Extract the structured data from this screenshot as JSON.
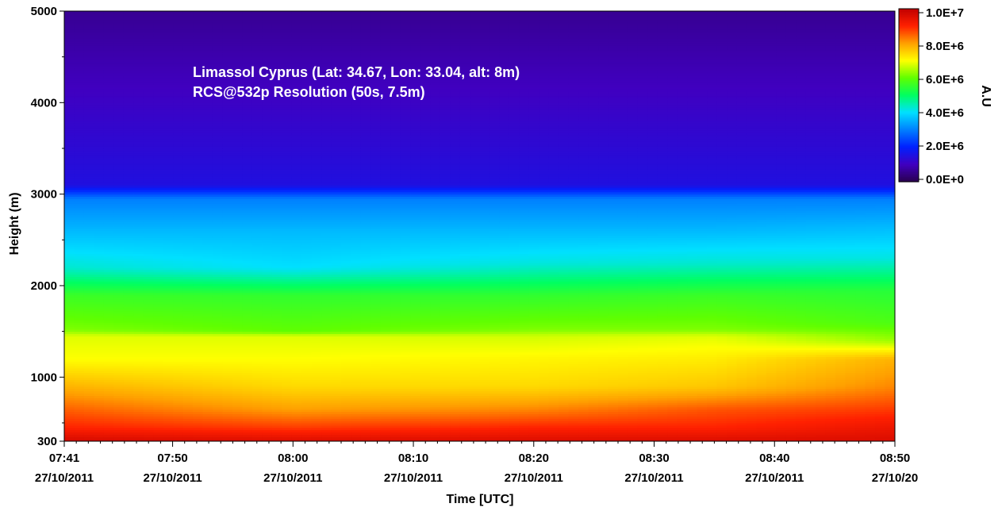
{
  "chart_data": {
    "type": "heatmap",
    "annotation_lines": [
      "Limassol Cyprus (Lat: 34.67, Lon: 33.04, alt: 8m)",
      "RCS@532p Resolution (50s, 7.5m)"
    ],
    "xlabel": "Time [UTC]",
    "ylabel": "Height (m)",
    "x_ticks": [
      {
        "time": "07:41",
        "date": "27/10/2011",
        "minutes": 461
      },
      {
        "time": "07:50",
        "date": "27/10/2011",
        "minutes": 470
      },
      {
        "time": "08:00",
        "date": "27/10/2011",
        "minutes": 480
      },
      {
        "time": "08:10",
        "date": "27/10/2011",
        "minutes": 490
      },
      {
        "time": "08:20",
        "date": "27/10/2011",
        "minutes": 500
      },
      {
        "time": "08:30",
        "date": "27/10/2011",
        "minutes": 510
      },
      {
        "time": "08:40",
        "date": "27/10/2011",
        "minutes": 520
      },
      {
        "time": "08:50",
        "date": "27/10/20",
        "minutes": 530
      }
    ],
    "xlim_minutes": [
      461,
      530
    ],
    "y_ticks": [
      300,
      1000,
      2000,
      3000,
      4000,
      5000
    ],
    "ylim": [
      300,
      5000
    ],
    "colorbar": {
      "label": "A.U",
      "ticks": [
        "1.0E+7",
        "8.0E+6",
        "6.0E+6",
        "4.0E+6",
        "2.0E+6",
        "0.0E+0"
      ],
      "tick_values": [
        10000000,
        8000000,
        6000000,
        4000000,
        2000000,
        0
      ],
      "range": [
        0,
        10000000
      ],
      "colors": [
        "#2a0050",
        "#4000c0",
        "#0020ff",
        "#0080ff",
        "#00e0ff",
        "#00ff60",
        "#60ff00",
        "#ffff00",
        "#ffa000",
        "#ff2000",
        "#c00000"
      ]
    },
    "profiles": [
      {
        "minutes": 461,
        "heights": [
          300,
          450,
          650,
          900,
          1200,
          1450,
          1520,
          1900,
          2200,
          2600,
          2950,
          3100,
          5000
        ],
        "values": [
          9700000.0,
          9000000.0,
          8500000.0,
          7800000.0,
          7000000.0,
          6800000.0,
          6200000.0,
          5600000.0,
          4300000.0,
          3600000.0,
          3000000.0,
          1500000.0,
          600000.0
        ]
      },
      {
        "minutes": 480,
        "heights": [
          300,
          450,
          650,
          900,
          1200,
          1450,
          1500,
          1900,
          2200,
          2600,
          2950,
          3100,
          5000
        ],
        "values": [
          9600000.0,
          8800000.0,
          8000000.0,
          7400000.0,
          7000000.0,
          6800000.0,
          6000000.0,
          5500000.0,
          4000000.0,
          3600000.0,
          3000000.0,
          1500000.0,
          600000.0
        ]
      },
      {
        "minutes": 500,
        "heights": [
          300,
          450,
          650,
          900,
          1200,
          1450,
          1520,
          1900,
          2250,
          2600,
          2950,
          3100,
          5000
        ],
        "values": [
          9600000.0,
          9000000.0,
          8200000.0,
          7400000.0,
          7100000.0,
          6700000.0,
          6200000.0,
          5500000.0,
          4200000.0,
          3600000.0,
          3000000.0,
          1500000.0,
          600000.0
        ]
      },
      {
        "minutes": 515,
        "heights": [
          300,
          450,
          650,
          900,
          1200,
          1450,
          1520,
          1900,
          2250,
          2600,
          2950,
          3100,
          5000
        ],
        "values": [
          9600000.0,
          9000000.0,
          8600000.0,
          7600000.0,
          7200000.0,
          6800000.0,
          6200000.0,
          5600000.0,
          4300000.0,
          3600000.0,
          3000000.0,
          1500000.0,
          600000.0
        ]
      },
      {
        "minutes": 530,
        "heights": [
          300,
          450,
          650,
          900,
          1200,
          1400,
          1600,
          1950,
          2300,
          2650,
          2950,
          3100,
          5000
        ],
        "values": [
          9600000.0,
          9300000.0,
          8800000.0,
          8200000.0,
          7800000.0,
          6400000.0,
          5800000.0,
          5400000.0,
          4200000.0,
          3600000.0,
          3000000.0,
          1500000.0,
          600000.0
        ]
      }
    ]
  }
}
